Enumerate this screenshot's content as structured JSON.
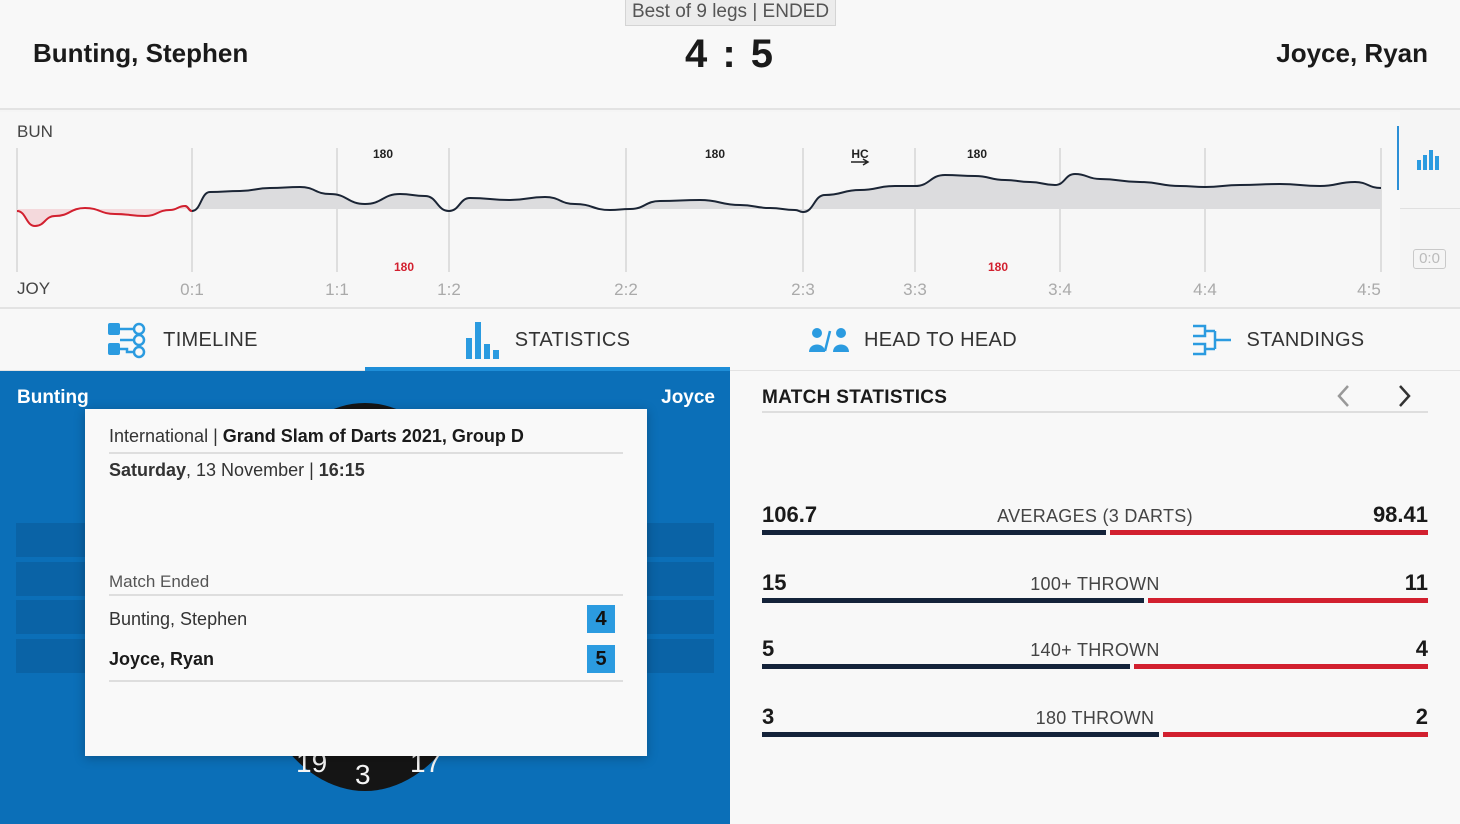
{
  "header": {
    "format": "Best of 9 legs | ENDED",
    "home_player": "Bunting, Stephen",
    "away_player": "Joyce, Ryan",
    "score": "4 : 5"
  },
  "momentum": {
    "home_abbr": "BUN",
    "away_abbr": "JOY",
    "leg_labels": [
      "0:1",
      "1:1",
      "1:2",
      "2:2",
      "2:3",
      "3:3",
      "3:4",
      "4:4",
      "4:5"
    ],
    "home_markers": [
      "180",
      "180",
      "HC",
      "180"
    ],
    "away_markers": [
      "180",
      "180"
    ],
    "toggle_score": "0:0",
    "colors": {
      "home_line": "#1b2535",
      "away_line": "#d2202f",
      "accent": "#1e8ed8"
    }
  },
  "tabs": [
    {
      "label": "TIMELINE",
      "icon": "timeline-icon",
      "active": false
    },
    {
      "label": "STATISTICS",
      "icon": "bar-chart-icon",
      "active": true
    },
    {
      "label": "HEAD TO HEAD",
      "icon": "head-to-head-icon",
      "active": false
    },
    {
      "label": "STANDINGS",
      "icon": "bracket-icon",
      "active": false
    }
  ],
  "board": {
    "home_short": "Bunting",
    "away_short": "Joyce",
    "numbers": [
      "19",
      "3",
      "17"
    ]
  },
  "card": {
    "category": "International",
    "separator": " | ",
    "tournament": "Grand Slam of Darts 2021, Group D",
    "day": "Saturday",
    "date": ", 13 November | ",
    "time": "16:15",
    "status": "Match Ended",
    "rows": [
      {
        "name": "Bunting, Stephen",
        "score": "4"
      },
      {
        "name": "Joyce, Ryan",
        "score": "5"
      }
    ]
  },
  "stats": {
    "title": "MATCH STATISTICS",
    "items": [
      {
        "label": "AVERAGES (3 DARTS)",
        "home": "106.7",
        "away": "98.41",
        "home_value": 106.7,
        "away_value": 98.41
      },
      {
        "label": "100+ THROWN",
        "home": "15",
        "away": "11",
        "home_value": 15,
        "away_value": 11
      },
      {
        "label": "140+ THROWN",
        "home": "5",
        "away": "4",
        "home_value": 5,
        "away_value": 4
      },
      {
        "label": "180 THROWN",
        "home": "3",
        "away": "2",
        "home_value": 3,
        "away_value": 2
      }
    ]
  }
}
